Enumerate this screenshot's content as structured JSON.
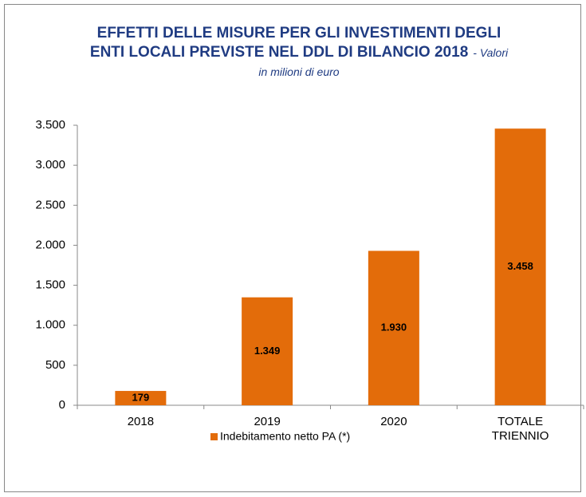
{
  "chart_data": {
    "type": "bar",
    "title": "EFFETTI DELLE  MISURE PER GLI INVESTIMENTI DEGLI ENTI LOCALI PREVISTE NEL  DDL DI BILANCIO 2018",
    "subtitle": "- Valori in milioni di euro",
    "categories": [
      "2018",
      "2019",
      "2020",
      "TOTALE TRIENNIO"
    ],
    "series": [
      {
        "name": "Indebitamento netto PA (*)",
        "color": "#e36c0a",
        "values": [
          179,
          1349,
          1930,
          3458
        ],
        "value_labels": [
          "179",
          "1.349",
          "1.930",
          "3.458"
        ]
      }
    ],
    "ylim": [
      0,
      3500
    ],
    "yticks": [
      0,
      500,
      {
        "value": 1000,
        "label": "1.000"
      },
      {
        "value": 1500,
        "label": "1.500"
      },
      {
        "value": 2000,
        "label": "2.000"
      },
      {
        "value": 2500,
        "label": "2.500"
      },
      {
        "value": 3000,
        "label": "3.000"
      },
      {
        "value": 3500,
        "label": "3.500"
      }
    ],
    "legend": "bottom"
  }
}
